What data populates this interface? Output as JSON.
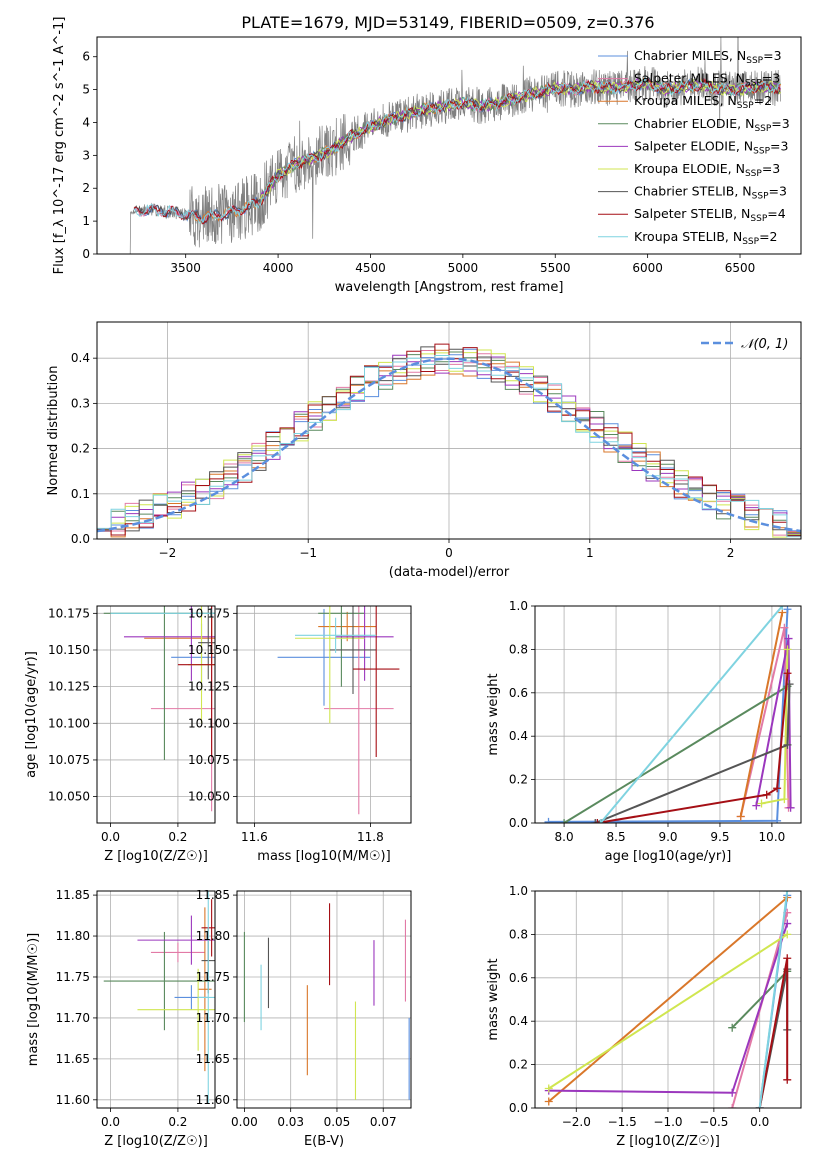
{
  "figure_title": "PLATE=1679, MJD=53149, FIBERID=0509, z=0.376",
  "colors": {
    "Chabrier MILES": "#5b8fde",
    "Salpeter MILES": "#e27aa6",
    "Kroupa MILES": "#d9772a",
    "Chabrier ELODIE": "#5a8a5e",
    "Salpeter ELODIE": "#9b37bd",
    "Kroupa ELODIE": "#d0e650",
    "Chabrier STELIB": "#555555",
    "Salpeter STELIB": "#a50f15",
    "Kroupa STELIB": "#7fd3e0",
    "data": "#808080",
    "normal": "#5b8fde"
  },
  "chart_data": [
    {
      "id": "spectrum",
      "type": "line",
      "title": "PLATE=1679, MJD=53149, FIBERID=0509, z=0.376",
      "xlabel": "wavelength [Angstrom, rest frame]",
      "ylabel": "Flux [f_λ 10^-17 erg cm^-2 s^-1 A^-1]",
      "xlim": [
        3020,
        6830
      ],
      "ylim": [
        0,
        6.6
      ],
      "xticks": [
        3500,
        4000,
        4500,
        5000,
        5500,
        6000,
        6500
      ],
      "yticks": [
        0,
        1,
        2,
        3,
        4,
        5,
        6
      ],
      "legend": "upper right",
      "continuum": {
        "x": [
          3200,
          3220,
          3300,
          3400,
          3500,
          3600,
          3700,
          3800,
          3900,
          4000,
          4100,
          4200,
          4300,
          4400,
          4500,
          4600,
          4700,
          4800,
          4900,
          5000,
          5100,
          5200,
          5300,
          5400,
          5500,
          5600,
          5700,
          5800,
          5900,
          6000,
          6100,
          6200,
          6300,
          6400,
          6500,
          6600,
          6700
        ],
        "y": [
          1.2,
          1.3,
          1.35,
          1.3,
          1.2,
          1.1,
          1.2,
          1.35,
          1.6,
          2.4,
          2.75,
          2.95,
          3.2,
          3.6,
          3.85,
          4.1,
          4.25,
          4.4,
          4.5,
          4.6,
          4.5,
          4.6,
          4.75,
          4.9,
          5.05,
          5.0,
          5.1,
          5.05,
          5.1,
          5.2,
          5.0,
          5.1,
          5.15,
          5.0,
          5.0,
          5.1,
          5.05
        ]
      },
      "series": [
        {
          "name": "Chabrier MILES, N_SSP=3"
        },
        {
          "name": "Salpeter MILES, N_SSP=3"
        },
        {
          "name": "Kroupa MILES, N_SSP=2"
        },
        {
          "name": "Chabrier ELODIE, N_SSP=3"
        },
        {
          "name": "Salpeter ELODIE, N_SSP=3"
        },
        {
          "name": "Kroupa ELODIE, N_SSP=3"
        },
        {
          "name": "Chabrier STELIB, N_SSP=3"
        },
        {
          "name": "Salpeter STELIB, N_SSP=4"
        },
        {
          "name": "Kroupa STELIB, N_SSP=2"
        }
      ]
    },
    {
      "id": "residuals",
      "type": "line",
      "xlabel": "(data-model)/error",
      "ylabel": "Normed distribution",
      "xlim": [
        -2.5,
        2.5
      ],
      "ylim": [
        0,
        0.48
      ],
      "xticks": [
        -2,
        -1,
        0,
        1,
        2
      ],
      "yticks": [
        0.0,
        0.1,
        0.2,
        0.3,
        0.4
      ],
      "grid": true,
      "legend": "upper right",
      "reference_label": "𝒩(0, 1)",
      "bin_width": 0.1
    },
    {
      "id": "age-vs-Z",
      "type": "scatter",
      "xlabel": "Z [log10(Z/Z☉)]",
      "ylabel": "age [log10(age/yr)]",
      "xlim": [
        -0.04,
        0.31
      ],
      "ylim": [
        10.032,
        10.18
      ],
      "xticks": [
        0.0,
        0.2
      ],
      "yticks": [
        10.05,
        10.075,
        10.1,
        10.125,
        10.15,
        10.175
      ],
      "grid": true,
      "points": [
        {
          "series": "Chabrier MILES",
          "x": 0.27,
          "y": 10.145,
          "xerr": 0.09,
          "yerr": 0.023
        },
        {
          "series": "Salpeter MILES",
          "x": 0.3,
          "y": 10.11,
          "xerr": 0.18,
          "yerr": 0.07
        },
        {
          "series": "Kroupa MILES",
          "x": 0.3,
          "y": 10.158,
          "xerr": 0.2,
          "yerr": 0.017
        },
        {
          "series": "Chabrier ELODIE",
          "x": 0.16,
          "y": 10.175,
          "xerr": 0.18,
          "yerr": 0.1
        },
        {
          "series": "Salpeter ELODIE",
          "x": 0.24,
          "y": 10.159,
          "xerr": 0.2,
          "yerr": 0.03
        },
        {
          "series": "Kroupa ELODIE",
          "x": 0.27,
          "y": 10.14,
          "xerr": 0.04,
          "yerr": 0.04
        },
        {
          "series": "Chabrier STELIB",
          "x": 0.29,
          "y": 10.155,
          "xerr": 0.03,
          "yerr": 0.025
        },
        {
          "series": "Salpeter STELIB",
          "x": 0.3,
          "y": 10.14,
          "xerr": 0.1,
          "yerr": 0.063
        },
        {
          "series": "Kroupa STELIB",
          "x": 0.3,
          "y": 10.175,
          "xerr": 0.3,
          "yerr": 0.003
        }
      ]
    },
    {
      "id": "age-vs-mass",
      "type": "scatter",
      "xlabel": "mass [log10(M/M☉)]",
      "ylabel": "",
      "xlim": [
        11.57,
        11.87
      ],
      "ylim": [
        10.032,
        10.18
      ],
      "xticks": [
        11.6,
        11.8
      ],
      "yticks": [
        10.05,
        10.075,
        10.1,
        10.125,
        10.15,
        10.175
      ],
      "grid": true,
      "points": [
        {
          "series": "Chabrier MILES",
          "x": 11.72,
          "y": 10.145,
          "xerr": 0.08,
          "yerr": 0.033
        },
        {
          "series": "Salpeter MILES",
          "x": 11.78,
          "y": 10.11,
          "xerr": 0.06,
          "yerr": 0.072
        },
        {
          "series": "Kroupa MILES",
          "x": 11.76,
          "y": 10.166,
          "xerr": 0.05,
          "yerr": 0.01
        },
        {
          "series": "Chabrier ELODIE",
          "x": 11.75,
          "y": 10.175,
          "xerr": 0.04,
          "yerr": 0.05
        },
        {
          "series": "Salpeter ELODIE",
          "x": 11.79,
          "y": 10.159,
          "xerr": 0.05,
          "yerr": 0.03
        },
        {
          "series": "Kroupa ELODIE",
          "x": 11.73,
          "y": 10.158,
          "xerr": 0.06,
          "yerr": 0.058
        },
        {
          "series": "Chabrier STELIB",
          "x": 11.77,
          "y": 10.15,
          "xerr": 0.04,
          "yerr": 0.03
        },
        {
          "series": "Salpeter STELIB",
          "x": 11.81,
          "y": 10.137,
          "xerr": 0.04,
          "yerr": 0.06
        },
        {
          "series": "Kroupa STELIB",
          "x": 11.74,
          "y": 10.16,
          "xerr": 0.07,
          "yerr": 0.012
        }
      ]
    },
    {
      "id": "weight-vs-age",
      "type": "line",
      "xlabel": "age [log10(age/yr)]",
      "ylabel": "mass weight",
      "xlim": [
        7.72,
        10.28
      ],
      "ylim": [
        0,
        1.0
      ],
      "xticks": [
        8.0,
        8.5,
        9.0,
        9.5,
        10.0
      ],
      "yticks": [
        0.0,
        0.2,
        0.4,
        0.6,
        0.8,
        1.0
      ],
      "grid": true,
      "series": [
        {
          "name": "Chabrier MILES",
          "x": [
            7.85,
            10.05,
            10.15
          ],
          "y": [
            0.005,
            0.01,
            0.985
          ]
        },
        {
          "name": "Salpeter MILES",
          "x": [
            9.7,
            10.12,
            10.16
          ],
          "y": [
            0.03,
            0.9,
            0.07
          ]
        },
        {
          "name": "Kroupa MILES",
          "x": [
            9.7,
            10.1
          ],
          "y": [
            0.03,
            0.97
          ]
        },
        {
          "name": "Chabrier ELODIE",
          "x": [
            8.0,
            10.15
          ],
          "y": [
            0.0,
            0.63
          ]
        },
        {
          "name": "Salpeter ELODIE",
          "x": [
            9.85,
            10.16,
            10.18
          ],
          "y": [
            0.08,
            0.85,
            0.07
          ]
        },
        {
          "name": "Kroupa ELODIE",
          "x": [
            9.9,
            10.12,
            10.15
          ],
          "y": [
            0.09,
            0.11,
            0.8
          ]
        },
        {
          "name": "Chabrier STELIB",
          "x": [
            8.3,
            10.15,
            10.17
          ],
          "y": [
            0.0,
            0.36,
            0.64
          ]
        },
        {
          "name": "Salpeter STELIB",
          "x": [
            8.32,
            9.95,
            10.05,
            10.15
          ],
          "y": [
            0.0,
            0.13,
            0.16,
            0.69
          ]
        },
        {
          "name": "Kroupa STELIB",
          "x": [
            8.35,
            10.1
          ],
          "y": [
            0.0,
            1.0
          ]
        }
      ]
    },
    {
      "id": "mass-vs-Z",
      "type": "scatter",
      "xlabel": "Z [log10(Z/Z☉)]",
      "ylabel": "mass [log10(M/M☉)]",
      "xlim": [
        -0.04,
        0.31
      ],
      "ylim": [
        11.59,
        11.855
      ],
      "xticks": [
        0.0,
        0.2
      ],
      "yticks": [
        11.6,
        11.65,
        11.7,
        11.75,
        11.8,
        11.85
      ],
      "grid": true,
      "points": [
        {
          "series": "Chabrier MILES",
          "x": 0.24,
          "y": 11.725,
          "xerr": 0.05,
          "yerr": 0.015
        },
        {
          "series": "Salpeter MILES",
          "x": 0.2,
          "y": 11.78,
          "xerr": 0.08,
          "yerr": 0.012
        },
        {
          "series": "Kroupa MILES",
          "x": 0.28,
          "y": 11.735,
          "xerr": 0.02,
          "yerr": 0.1
        },
        {
          "series": "Chabrier ELODIE",
          "x": 0.16,
          "y": 11.745,
          "xerr": 0.18,
          "yerr": 0.06
        },
        {
          "series": "Salpeter ELODIE",
          "x": 0.24,
          "y": 11.795,
          "xerr": 0.16,
          "yerr": 0.03
        },
        {
          "series": "Kroupa ELODIE",
          "x": 0.26,
          "y": 11.71,
          "xerr": 0.18,
          "yerr": 0.05
        },
        {
          "series": "Chabrier STELIB",
          "x": 0.29,
          "y": 11.77,
          "xerr": 0.02,
          "yerr": 0.04
        },
        {
          "series": "Salpeter STELIB",
          "x": 0.3,
          "y": 11.81,
          "xerr": 0.03,
          "yerr": 0.035
        },
        {
          "series": "Kroupa STELIB",
          "x": 0.29,
          "y": 11.725,
          "xerr": 0.03,
          "yerr": 0.13
        }
      ]
    },
    {
      "id": "mass-vs-ebv",
      "type": "scatter",
      "xlabel": "E(B-V)",
      "ylabel": "",
      "xlim": [
        -0.004,
        0.09
      ],
      "ylim": [
        11.59,
        11.855
      ],
      "xticks": [
        0.0,
        0.025,
        0.05,
        0.075
      ],
      "yticks": [
        11.6,
        11.65,
        11.7,
        11.75,
        11.8,
        11.85
      ],
      "grid": true,
      "points": [
        {
          "series": "Chabrier MILES",
          "x": 0.089,
          "y": 11.65,
          "yerr": 0.05
        },
        {
          "series": "Salpeter MILES",
          "x": 0.087,
          "y": 11.77,
          "yerr": 0.05
        },
        {
          "series": "Kroupa MILES",
          "x": 0.034,
          "y": 11.685,
          "yerr": 0.055
        },
        {
          "series": "Chabrier ELODIE",
          "x": 0.0,
          "y": 11.75,
          "yerr": 0.055
        },
        {
          "series": "Salpeter ELODIE",
          "x": 0.07,
          "y": 11.755,
          "yerr": 0.04
        },
        {
          "series": "Kroupa ELODIE",
          "x": 0.06,
          "y": 11.66,
          "yerr": 0.06
        },
        {
          "series": "Chabrier STELIB",
          "x": 0.013,
          "y": 11.755,
          "yerr": 0.043
        },
        {
          "series": "Salpeter STELIB",
          "x": 0.046,
          "y": 11.79,
          "yerr": 0.05
        },
        {
          "series": "Kroupa STELIB",
          "x": 0.009,
          "y": 11.725,
          "yerr": 0.04
        }
      ]
    },
    {
      "id": "weight-vs-Z",
      "type": "line",
      "xlabel": "Z [log10(Z/Z☉)]",
      "ylabel": "mass weight",
      "xlim": [
        -2.45,
        0.45
      ],
      "ylim": [
        0,
        1.0
      ],
      "xticks": [
        -2.0,
        -1.5,
        -1.0,
        -0.5,
        0.0
      ],
      "yticks": [
        0.0,
        0.2,
        0.4,
        0.6,
        0.8,
        1.0
      ],
      "grid": true,
      "series": [
        {
          "name": "Chabrier MILES",
          "x": [
            0.0,
            0.3
          ],
          "y": [
            0.0,
            0.98
          ]
        },
        {
          "name": "Salpeter MILES",
          "x": [
            -0.3,
            0.3
          ],
          "y": [
            0.0,
            0.9
          ]
        },
        {
          "name": "Kroupa MILES",
          "x": [
            -2.3,
            0.3
          ],
          "y": [
            0.03,
            0.97
          ]
        },
        {
          "name": "Chabrier ELODIE",
          "x": [
            -0.3,
            0.3
          ],
          "y": [
            0.37,
            0.63
          ]
        },
        {
          "name": "Salpeter ELODIE",
          "x": [
            -2.3,
            -0.3,
            0.3
          ],
          "y": [
            0.08,
            0.07,
            0.85
          ]
        },
        {
          "name": "Kroupa ELODIE",
          "x": [
            -2.3,
            0.3
          ],
          "y": [
            0.09,
            0.8
          ]
        },
        {
          "name": "Chabrier STELIB",
          "x": [
            0.0,
            0.3,
            0.3
          ],
          "y": [
            0.0,
            0.64,
            0.36
          ]
        },
        {
          "name": "Salpeter STELIB",
          "x": [
            0.0,
            0.3,
            0.3
          ],
          "y": [
            0.0,
            0.69,
            0.13
          ]
        },
        {
          "name": "Kroupa STELIB",
          "x": [
            0.0,
            0.3
          ],
          "y": [
            0.0,
            1.0
          ]
        }
      ]
    }
  ]
}
